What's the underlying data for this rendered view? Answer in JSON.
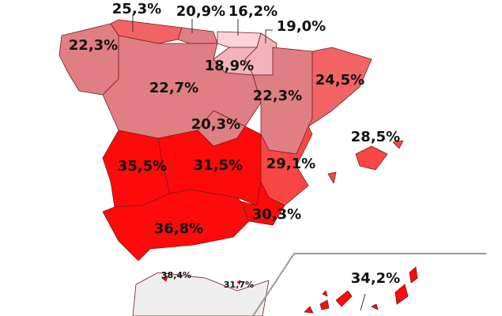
{
  "regions": {
    "values": [
      25.3,
      20.9,
      16.2,
      19.0,
      22.3,
      18.9,
      22.7,
      22.3,
      24.5,
      20.3,
      28.5,
      35.5,
      31.5,
      29.1,
      30.3,
      36.8,
      34.2,
      38.4,
      31.7
    ],
    "value_labels": [
      "25,3%",
      "20,9%",
      "16,2%",
      "19,0%",
      "22,3%",
      "18,9%",
      "22,7%",
      "22,3%",
      "24,5%",
      "20,3%",
      "28,5%",
      "35,5%",
      "31,5%",
      "29,1%",
      "30,3%",
      "36,8%",
      "34,2%",
      "38,4%",
      "31,7%"
    ]
  }
}
